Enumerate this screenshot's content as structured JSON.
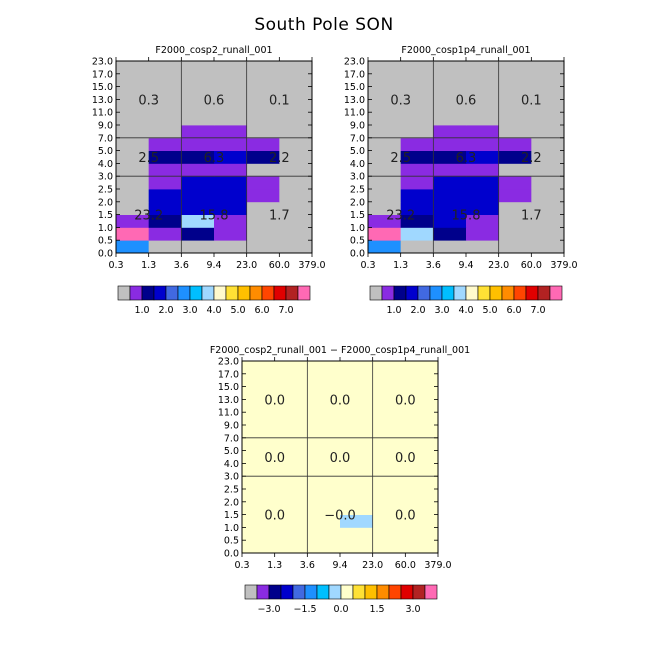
{
  "title": "South Pole SON",
  "y_ticks": [
    "0.0",
    "0.5",
    "1.0",
    "1.5",
    "2.0",
    "2.5",
    "3.0",
    "4.0",
    "5.0",
    "7.0",
    "9.0",
    "11.0",
    "13.0",
    "15.0",
    "17.0",
    "23.0"
  ],
  "x_ticks": [
    "0.3",
    "1.3",
    "3.6",
    "9.4",
    "23.0",
    "60.0",
    "379.0"
  ],
  "panel_colors": [
    "#c0c0c0",
    "#8a2be2",
    "#00008b",
    "#0000cd",
    "#4169e1",
    "#1e90ff",
    "#00bfff",
    "#a0d8ff",
    "#fffacd",
    "#ffe135",
    "#ffc000",
    "#ff8c00",
    "#ff4500",
    "#e00000",
    "#b22222",
    "#ff69b4"
  ],
  "diff_colors": [
    "#c0c0c0",
    "#8a2be2",
    "#00008b",
    "#0000cd",
    "#4169e1",
    "#1e90ff",
    "#00bfff",
    "#a0d8ff",
    "#ffffcc",
    "#ffe135",
    "#ffc000",
    "#ff8c00",
    "#ff4500",
    "#e00000",
    "#b22222",
    "#ff69b4"
  ],
  "chart_data": [
    {
      "type": "heatmap",
      "title": "F2000_cosp2_runall_001",
      "x_ticks": [
        "0.3",
        "1.3",
        "3.6",
        "9.4",
        "23.0",
        "60.0",
        "379.0"
      ],
      "y_ticks": [
        "0.0",
        "0.5",
        "1.0",
        "1.5",
        "2.0",
        "2.5",
        "3.0",
        "4.0",
        "5.0",
        "7.0",
        "9.0",
        "11.0",
        "13.0",
        "15.0",
        "17.0",
        "23.0"
      ],
      "cells": [
        [
          5,
          0,
          0,
          0,
          0,
          0
        ],
        [
          15,
          1,
          2,
          1,
          0,
          0
        ],
        [
          1,
          2,
          7,
          1,
          0,
          0
        ],
        [
          0,
          3,
          3,
          3,
          0,
          0
        ],
        [
          0,
          3,
          3,
          3,
          1,
          0
        ],
        [
          0,
          1,
          3,
          3,
          1,
          0
        ],
        [
          0,
          1,
          1,
          1,
          0,
          0
        ],
        [
          0,
          2,
          2,
          3,
          2,
          0
        ],
        [
          0,
          1,
          1,
          1,
          1,
          0
        ],
        [
          0,
          0,
          1,
          1,
          0,
          0
        ],
        [
          0,
          0,
          0,
          0,
          0,
          0
        ],
        [
          0,
          0,
          0,
          0,
          0,
          0
        ],
        [
          0,
          0,
          0,
          0,
          0,
          0
        ],
        [
          0,
          0,
          0,
          0,
          0,
          0
        ],
        [
          0,
          0,
          0,
          0,
          0,
          0
        ]
      ],
      "group_labels": [
        {
          "col": 0,
          "row": 0,
          "text": "23.2"
        },
        {
          "col": 1,
          "row": 0,
          "text": "15.8"
        },
        {
          "col": 2,
          "row": 0,
          "text": "1.7"
        },
        {
          "col": 0,
          "row": 1,
          "text": "2.5"
        },
        {
          "col": 1,
          "row": 1,
          "text": "6.3"
        },
        {
          "col": 2,
          "row": 1,
          "text": "2.2"
        },
        {
          "col": 0,
          "row": 2,
          "text": "0.3"
        },
        {
          "col": 1,
          "row": 2,
          "text": "0.6"
        },
        {
          "col": 2,
          "row": 2,
          "text": "0.1"
        }
      ],
      "colorbar_labels": [
        "1.0",
        "2.0",
        "3.0",
        "4.0",
        "5.0",
        "6.0",
        "7.0"
      ]
    },
    {
      "type": "heatmap",
      "title": "F2000_cosp1p4_runall_001",
      "x_ticks": [
        "0.3",
        "1.3",
        "3.6",
        "9.4",
        "23.0",
        "60.0",
        "379.0"
      ],
      "y_ticks": [
        "0.0",
        "0.5",
        "1.0",
        "1.5",
        "2.0",
        "2.5",
        "3.0",
        "4.0",
        "5.0",
        "7.0",
        "9.0",
        "11.0",
        "13.0",
        "15.0",
        "17.0",
        "23.0"
      ],
      "cells": [
        [
          5,
          0,
          0,
          0,
          0,
          0
        ],
        [
          15,
          7,
          2,
          1,
          0,
          0
        ],
        [
          1,
          2,
          3,
          1,
          0,
          0
        ],
        [
          0,
          3,
          3,
          3,
          0,
          0
        ],
        [
          0,
          3,
          3,
          3,
          1,
          0
        ],
        [
          0,
          1,
          3,
          3,
          1,
          0
        ],
        [
          0,
          1,
          1,
          1,
          0,
          0
        ],
        [
          0,
          2,
          2,
          3,
          2,
          0
        ],
        [
          0,
          1,
          1,
          1,
          1,
          0
        ],
        [
          0,
          0,
          1,
          1,
          0,
          0
        ],
        [
          0,
          0,
          0,
          0,
          0,
          0
        ],
        [
          0,
          0,
          0,
          0,
          0,
          0
        ],
        [
          0,
          0,
          0,
          0,
          0,
          0
        ],
        [
          0,
          0,
          0,
          0,
          0,
          0
        ],
        [
          0,
          0,
          0,
          0,
          0,
          0
        ]
      ],
      "group_labels": [
        {
          "col": 0,
          "row": 0,
          "text": "23.2"
        },
        {
          "col": 1,
          "row": 0,
          "text": "15.8"
        },
        {
          "col": 2,
          "row": 0,
          "text": "1.7"
        },
        {
          "col": 0,
          "row": 1,
          "text": "2.5"
        },
        {
          "col": 1,
          "row": 1,
          "text": "6.3"
        },
        {
          "col": 2,
          "row": 1,
          "text": "2.2"
        },
        {
          "col": 0,
          "row": 2,
          "text": "0.3"
        },
        {
          "col": 1,
          "row": 2,
          "text": "0.6"
        },
        {
          "col": 2,
          "row": 2,
          "text": "0.1"
        }
      ],
      "colorbar_labels": [
        "1.0",
        "2.0",
        "3.0",
        "4.0",
        "5.0",
        "6.0",
        "7.0"
      ]
    },
    {
      "type": "heatmap",
      "title": "F2000_cosp2_runall_001 − F2000_cosp1p4_runall_001",
      "x_ticks": [
        "0.3",
        "1.3",
        "3.6",
        "9.4",
        "23.0",
        "60.0",
        "379.0"
      ],
      "y_ticks": [
        "0.0",
        "0.5",
        "1.0",
        "1.5",
        "2.0",
        "2.5",
        "3.0",
        "4.0",
        "5.0",
        "7.0",
        "9.0",
        "11.0",
        "13.0",
        "15.0",
        "17.0",
        "23.0"
      ],
      "cells": [
        [
          8,
          8,
          8,
          8,
          8,
          8
        ],
        [
          8,
          8,
          8,
          8,
          8,
          8
        ],
        [
          8,
          8,
          8,
          7,
          8,
          8
        ],
        [
          8,
          8,
          8,
          8,
          8,
          8
        ],
        [
          8,
          8,
          8,
          8,
          8,
          8
        ],
        [
          8,
          8,
          8,
          8,
          8,
          8
        ],
        [
          8,
          8,
          8,
          8,
          8,
          8
        ],
        [
          8,
          8,
          8,
          8,
          8,
          8
        ],
        [
          8,
          8,
          8,
          8,
          8,
          8
        ],
        [
          8,
          8,
          8,
          8,
          8,
          8
        ],
        [
          8,
          8,
          8,
          8,
          8,
          8
        ],
        [
          8,
          8,
          8,
          8,
          8,
          8
        ],
        [
          8,
          8,
          8,
          8,
          8,
          8
        ],
        [
          8,
          8,
          8,
          8,
          8,
          8
        ],
        [
          8,
          8,
          8,
          8,
          8,
          8
        ]
      ],
      "group_labels": [
        {
          "col": 0,
          "row": 0,
          "text": "0.0"
        },
        {
          "col": 1,
          "row": 0,
          "text": "−0.0"
        },
        {
          "col": 2,
          "row": 0,
          "text": "0.0"
        },
        {
          "col": 0,
          "row": 1,
          "text": "0.0"
        },
        {
          "col": 1,
          "row": 1,
          "text": "0.0"
        },
        {
          "col": 2,
          "row": 1,
          "text": "0.0"
        },
        {
          "col": 0,
          "row": 2,
          "text": "0.0"
        },
        {
          "col": 1,
          "row": 2,
          "text": "0.0"
        },
        {
          "col": 2,
          "row": 2,
          "text": "0.0"
        }
      ],
      "colorbar_labels": [
        "−3.0",
        "−1.5",
        "0.0",
        "1.5",
        "3.0"
      ]
    }
  ]
}
